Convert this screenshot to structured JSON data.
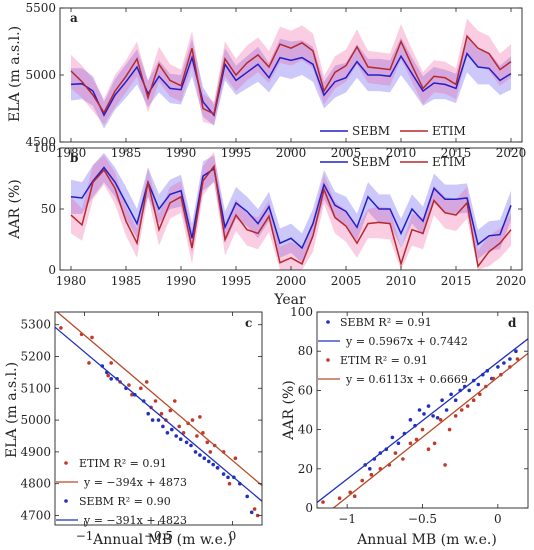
{
  "chart_data": [
    {
      "id": "a",
      "type": "line",
      "panel_label": "a",
      "ylabel": "ELA (m a.s.l.)",
      "xlabel": "",
      "xlim": [
        1979,
        2021
      ],
      "ylim": [
        4500,
        5500
      ],
      "xticks": [
        1980,
        1985,
        1990,
        1995,
        2000,
        2005,
        2010,
        2015,
        2020
      ],
      "yticks": [
        4500,
        5000,
        5500
      ],
      "legend_position": "bottom-right",
      "x": [
        1980,
        1981,
        1982,
        1983,
        1984,
        1985,
        1986,
        1987,
        1988,
        1989,
        1990,
        1991,
        1992,
        1993,
        1994,
        1995,
        1996,
        1997,
        1998,
        1999,
        2000,
        2001,
        2002,
        2003,
        2004,
        2005,
        2006,
        2007,
        2008,
        2009,
        2010,
        2011,
        2012,
        2013,
        2014,
        2015,
        2016,
        2017,
        2018,
        2019,
        2020
      ],
      "series": [
        {
          "name": "SEBM",
          "color": "#2020c8",
          "values": [
            4930,
            4935,
            4880,
            4700,
            4850,
            4950,
            5060,
            4860,
            4990,
            4900,
            4890,
            5130,
            4800,
            4700,
            5080,
            4960,
            5020,
            5080,
            4980,
            5130,
            5110,
            5130,
            5080,
            4850,
            4950,
            4980,
            5100,
            5000,
            5000,
            4990,
            5140,
            5010,
            4880,
            4940,
            4930,
            4900,
            5160,
            5060,
            5050,
            4960,
            5010
          ],
          "band_lower": [
            4810,
            4820,
            4770,
            4600,
            4740,
            4830,
            4930,
            4760,
            4870,
            4790,
            4780,
            4990,
            4690,
            4620,
            4960,
            4850,
            4900,
            4950,
            4870,
            4990,
            4970,
            5000,
            4950,
            4750,
            4830,
            4870,
            4980,
            4880,
            4880,
            4870,
            5000,
            4890,
            4770,
            4820,
            4820,
            4790,
            5020,
            4930,
            4930,
            4850,
            4890
          ],
          "band_upper": [
            5050,
            5050,
            4990,
            4800,
            4970,
            5080,
            5190,
            4960,
            5110,
            5010,
            5000,
            5270,
            4910,
            4780,
            5200,
            5070,
            5140,
            5210,
            5090,
            5270,
            5250,
            5260,
            5210,
            4950,
            5070,
            5090,
            5230,
            5120,
            5120,
            5110,
            5280,
            5130,
            4990,
            5060,
            5040,
            5010,
            5290,
            5190,
            5170,
            5070,
            5140
          ]
        },
        {
          "name": "ETIM",
          "color": "#b8282a",
          "values": [
            5030,
            4950,
            4850,
            4720,
            4880,
            4990,
            5120,
            4830,
            5080,
            4960,
            4920,
            5200,
            4750,
            4710,
            5120,
            5000,
            5090,
            5150,
            5060,
            5230,
            5200,
            5240,
            5180,
            4880,
            5020,
            5070,
            5210,
            5060,
            5050,
            5040,
            5250,
            5070,
            4900,
            4990,
            4980,
            4930,
            5290,
            5200,
            5160,
            5040,
            5100
          ],
          "band_lower": [
            4900,
            4830,
            4730,
            4630,
            4760,
            4870,
            4990,
            4720,
            4950,
            4840,
            4800,
            5070,
            4650,
            4630,
            4990,
            4880,
            4960,
            5020,
            4940,
            5090,
            5070,
            5110,
            5050,
            4780,
            4900,
            4950,
            5080,
            4940,
            4930,
            4920,
            5120,
            4950,
            4780,
            4870,
            4860,
            4820,
            5150,
            5070,
            5030,
            4920,
            4980
          ],
          "band_upper": [
            5150,
            5070,
            4970,
            4820,
            5000,
            5110,
            5250,
            4950,
            5210,
            5080,
            5040,
            5330,
            4860,
            4800,
            5250,
            5120,
            5220,
            5280,
            5180,
            5360,
            5330,
            5370,
            5310,
            4990,
            5140,
            5190,
            5340,
            5180,
            5170,
            5160,
            5380,
            5190,
            5020,
            5110,
            5100,
            5050,
            5420,
            5330,
            5290,
            5160,
            5230
          ]
        }
      ]
    },
    {
      "id": "b",
      "type": "line",
      "panel_label": "b",
      "ylabel": "AAR (%)",
      "xlabel": "Year",
      "xlim": [
        1979,
        2021
      ],
      "ylim": [
        0,
        100
      ],
      "xticks": [
        1980,
        1985,
        1990,
        1995,
        2000,
        2005,
        2010,
        2015,
        2020
      ],
      "yticks": [
        0,
        50,
        100
      ],
      "legend_position": "top-right",
      "x": [
        1980,
        1981,
        1982,
        1983,
        1984,
        1985,
        1986,
        1987,
        1988,
        1989,
        1990,
        1991,
        1992,
        1993,
        1994,
        1995,
        1996,
        1997,
        1998,
        1999,
        2000,
        2001,
        2002,
        2003,
        2004,
        2005,
        2006,
        2007,
        2008,
        2009,
        2010,
        2011,
        2012,
        2013,
        2014,
        2015,
        2016,
        2017,
        2018,
        2019,
        2020
      ],
      "series": [
        {
          "name": "SEBM",
          "color": "#2020c8",
          "values": [
            60,
            59,
            73,
            84,
            72,
            55,
            38,
            72,
            50,
            62,
            65,
            26,
            77,
            83,
            35,
            55,
            48,
            38,
            52,
            22,
            26,
            18,
            38,
            70,
            53,
            48,
            35,
            60,
            50,
            50,
            30,
            50,
            40,
            67,
            58,
            58,
            59,
            21,
            28,
            29,
            53
          ],
          "band_lower": [
            46,
            46,
            60,
            72,
            60,
            42,
            26,
            60,
            38,
            50,
            52,
            14,
            65,
            72,
            22,
            42,
            36,
            26,
            40,
            10,
            14,
            6,
            26,
            58,
            42,
            36,
            24,
            48,
            38,
            38,
            18,
            38,
            28,
            55,
            46,
            46,
            47,
            9,
            16,
            17,
            41
          ],
          "band_upper": [
            74,
            72,
            86,
            96,
            84,
            68,
            50,
            84,
            62,
            74,
            78,
            38,
            89,
            94,
            48,
            68,
            60,
            50,
            64,
            34,
            38,
            30,
            50,
            82,
            64,
            60,
            46,
            72,
            62,
            62,
            42,
            62,
            52,
            79,
            70,
            70,
            71,
            33,
            40,
            41,
            65
          ]
        },
        {
          "name": "ETIM",
          "color": "#b8282a",
          "values": [
            45,
            37,
            72,
            82,
            67,
            40,
            22,
            72,
            33,
            55,
            60,
            18,
            73,
            85,
            25,
            45,
            33,
            30,
            44,
            6,
            10,
            5,
            28,
            66,
            43,
            36,
            22,
            38,
            39,
            38,
            5,
            33,
            30,
            57,
            47,
            45,
            55,
            3,
            15,
            22,
            33
          ],
          "band_lower": [
            30,
            24,
            58,
            70,
            54,
            28,
            10,
            60,
            20,
            42,
            47,
            5,
            61,
            73,
            12,
            32,
            20,
            17,
            31,
            0,
            0,
            0,
            15,
            54,
            30,
            23,
            10,
            26,
            26,
            25,
            0,
            20,
            17,
            45,
            34,
            32,
            42,
            0,
            3,
            10,
            20
          ],
          "band_upper": [
            60,
            50,
            86,
            94,
            80,
            52,
            34,
            84,
            46,
            68,
            73,
            31,
            85,
            97,
            38,
            58,
            46,
            43,
            57,
            19,
            23,
            18,
            41,
            78,
            56,
            49,
            34,
            50,
            52,
            51,
            18,
            46,
            43,
            69,
            60,
            58,
            68,
            16,
            28,
            34,
            46
          ]
        }
      ]
    },
    {
      "id": "c",
      "type": "scatter",
      "panel_label": "c",
      "ylabel": "ELA (m a.s.l.)",
      "xlabel": "Annual MB (m w.e.)",
      "xlim": [
        -1.2,
        0.2
      ],
      "ylim": [
        4670,
        5340
      ],
      "xticks": [
        -1,
        -0.5,
        0
      ],
      "yticks": [
        4700,
        4800,
        4900,
        5000,
        5100,
        5200,
        5300
      ],
      "legend_position": "bottom-left",
      "legend": [
        "ETIM R² = 0.91",
        "y = −394x + 4873",
        "SEBM R² = 0.90",
        "y = −391x + 4823"
      ],
      "series": [
        {
          "name": "ETIM",
          "color": "#c0392b",
          "marker": "dot",
          "x": [
            -1.16,
            -1.02,
            -0.95,
            -0.97,
            -0.84,
            -0.82,
            -0.76,
            -0.7,
            -0.68,
            -0.62,
            -0.58,
            -0.55,
            -0.52,
            -0.48,
            -0.45,
            -0.42,
            -0.39,
            -0.36,
            -0.33,
            -0.3,
            -0.27,
            -0.24,
            -0.22,
            -0.2,
            -0.17,
            -0.15,
            -0.12,
            -0.1,
            -0.06,
            -0.02,
            0.02,
            0.15,
            0.17
          ],
          "y": [
            5290,
            5270,
            5260,
            5180,
            5140,
            5180,
            5120,
            5110,
            5080,
            5100,
            5120,
            5040,
            5060,
            5020,
            5000,
            5030,
            5060,
            4980,
            4960,
            4990,
            5000,
            4950,
            5010,
            4960,
            4930,
            4900,
            4920,
            4850,
            4900,
            4800,
            4880,
            4720,
            4700
          ]
        },
        {
          "name": "SEBM",
          "color": "#2030c0",
          "marker": "dot",
          "x": [
            -0.88,
            -0.85,
            -0.82,
            -0.78,
            -0.72,
            -0.66,
            -0.6,
            -0.57,
            -0.54,
            -0.5,
            -0.47,
            -0.44,
            -0.41,
            -0.38,
            -0.35,
            -0.31,
            -0.28,
            -0.25,
            -0.22,
            -0.19,
            -0.16,
            -0.13,
            -0.1,
            -0.06,
            -0.03,
            0.01,
            0.05,
            0.1,
            0.13
          ],
          "y": [
            5170,
            5150,
            5130,
            5130,
            5100,
            5080,
            5060,
            5020,
            5000,
            5000,
            4980,
            4960,
            4970,
            4950,
            4940,
            4930,
            4920,
            4900,
            4890,
            4880,
            4870,
            4860,
            4850,
            4830,
            4820,
            4820,
            4800,
            4760,
            4710
          ]
        }
      ],
      "fits": [
        {
          "name": "y = −394x + 4873",
          "color": "#b84a2a",
          "slope": -394,
          "intercept": 4873
        },
        {
          "name": "y = −391x + 4823",
          "color": "#2030c0",
          "slope": -391,
          "intercept": 4823
        }
      ]
    },
    {
      "id": "d",
      "type": "scatter",
      "panel_label": "d",
      "ylabel": "AAR (%)",
      "xlabel": "Annual MB (m w.e.)",
      "xlim": [
        -1.2,
        0.2
      ],
      "ylim": [
        0,
        100
      ],
      "xticks": [
        -1,
        -0.5,
        0
      ],
      "yticks": [
        0,
        20,
        40,
        60,
        80,
        100
      ],
      "legend_position": "top-left",
      "legend": [
        "SEBM R² = 0.91",
        "y = 0.5967x + 0.7442",
        "ETIM R² = 0.91",
        "y = 0.6113x + 0.6669"
      ],
      "series": [
        {
          "name": "SEBM",
          "color": "#2030c0",
          "marker": "dot",
          "x": [
            -0.88,
            -0.85,
            -0.82,
            -0.78,
            -0.74,
            -0.7,
            -0.66,
            -0.62,
            -0.58,
            -0.55,
            -0.52,
            -0.49,
            -0.46,
            -0.43,
            -0.4,
            -0.37,
            -0.34,
            -0.31,
            -0.28,
            -0.25,
            -0.22,
            -0.19,
            -0.16,
            -0.13,
            -0.1,
            -0.07,
            -0.04,
            0.0,
            0.04,
            0.08,
            0.12
          ],
          "y": [
            22,
            20,
            25,
            28,
            30,
            36,
            33,
            38,
            45,
            42,
            50,
            48,
            52,
            47,
            46,
            55,
            50,
            58,
            55,
            60,
            62,
            60,
            65,
            63,
            68,
            70,
            66,
            72,
            74,
            76,
            80
          ]
        },
        {
          "name": "ETIM",
          "color": "#c0392b",
          "marker": "dot",
          "x": [
            -1.16,
            -1.05,
            -0.98,
            -0.95,
            -0.9,
            -0.84,
            -0.78,
            -0.72,
            -0.68,
            -0.63,
            -0.58,
            -0.54,
            -0.5,
            -0.46,
            -0.42,
            -0.38,
            -0.35,
            -0.32,
            -0.28,
            -0.24,
            -0.2,
            -0.16,
            -0.12,
            -0.08,
            -0.03,
            0.02,
            0.08,
            0.13
          ],
          "y": [
            3,
            5,
            8,
            6,
            14,
            17,
            20,
            22,
            28,
            25,
            33,
            35,
            40,
            30,
            33,
            45,
            22,
            40,
            47,
            50,
            52,
            55,
            58,
            62,
            66,
            68,
            72,
            76
          ]
        }
      ],
      "fits": [
        {
          "name": "y = 0.5967x + 0.7442",
          "color": "#2030c0",
          "slope": 59.67,
          "intercept": 74.42
        },
        {
          "name": "y = 0.6113x + 0.6669",
          "color": "#b84a2a",
          "slope": 61.13,
          "intercept": 66.69
        }
      ]
    }
  ]
}
